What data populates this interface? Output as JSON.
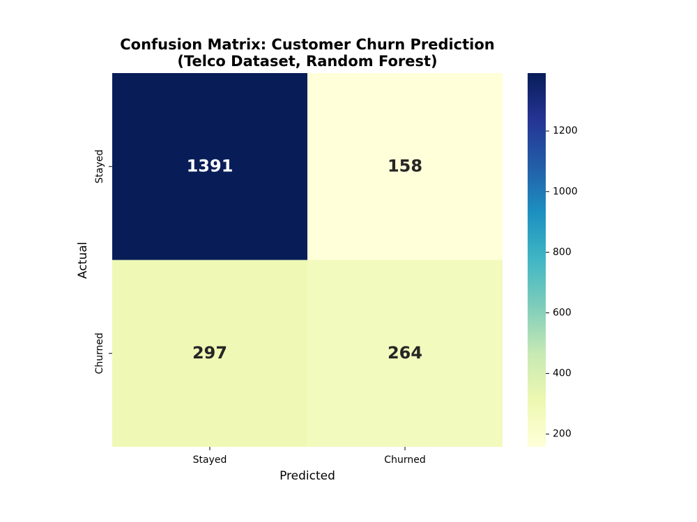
{
  "chart_data": {
    "type": "heatmap",
    "title": [
      "Confusion Matrix: Customer Churn Prediction",
      "(Telco Dataset, Random Forest)"
    ],
    "xlabel": "Predicted",
    "ylabel": "Actual",
    "x_categories": [
      "Stayed",
      "Churned"
    ],
    "y_categories": [
      "Stayed",
      "Churned"
    ],
    "values": [
      [
        1391,
        158
      ],
      [
        297,
        264
      ]
    ],
    "colormap": "YlGnBu",
    "colorbar": {
      "lim": [
        158,
        1391
      ],
      "ticks": [
        200,
        400,
        600,
        800,
        1000,
        1200
      ]
    }
  }
}
